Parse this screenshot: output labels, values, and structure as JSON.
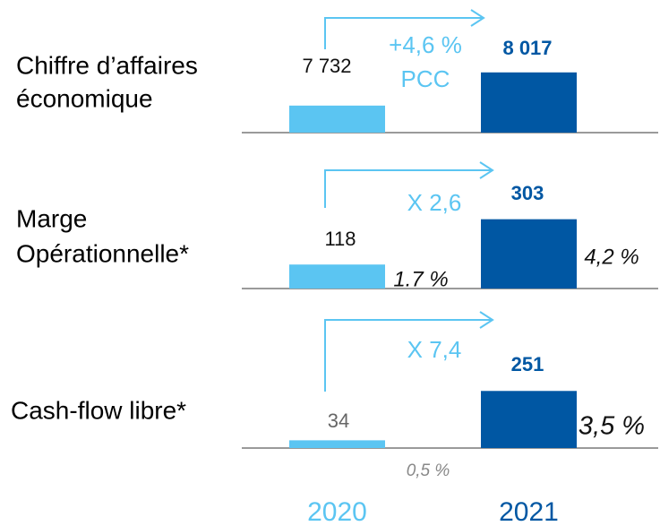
{
  "chart_data": [
    {
      "type": "bar",
      "title": [
        "Chiffre d’affaires",
        "économique"
      ],
      "values": [
        7732,
        8017
      ],
      "value_labels": [
        "7 732",
        "8 017"
      ],
      "colors": [
        "#5bc5f2",
        "#0057a3"
      ],
      "ylim": [
        7500,
        8100
      ],
      "annotations": [
        "+4,6 %",
        "PCC"
      ],
      "margins": []
    },
    {
      "type": "bar",
      "title": [
        "Marge",
        "Opérationnelle*"
      ],
      "values": [
        118,
        303
      ],
      "colors": [
        "#5bc5f2",
        "#0057a3"
      ],
      "ylim": [
        20,
        320
      ],
      "annotations": [
        "X 2,6"
      ],
      "margins": [
        "1.7 %",
        "4,2 %"
      ]
    },
    {
      "type": "bar",
      "title": [
        "Cash-flow libre*"
      ],
      "values": [
        34,
        251
      ],
      "colors": [
        "#5bc5f2",
        "#0057a3"
      ],
      "ylim": [
        0,
        260
      ],
      "annotations": [
        "X 7,4"
      ],
      "margins": [
        "0,5 %",
        "3,5 %"
      ],
      "categories": [
        "2020",
        "2021"
      ]
    }
  ]
}
